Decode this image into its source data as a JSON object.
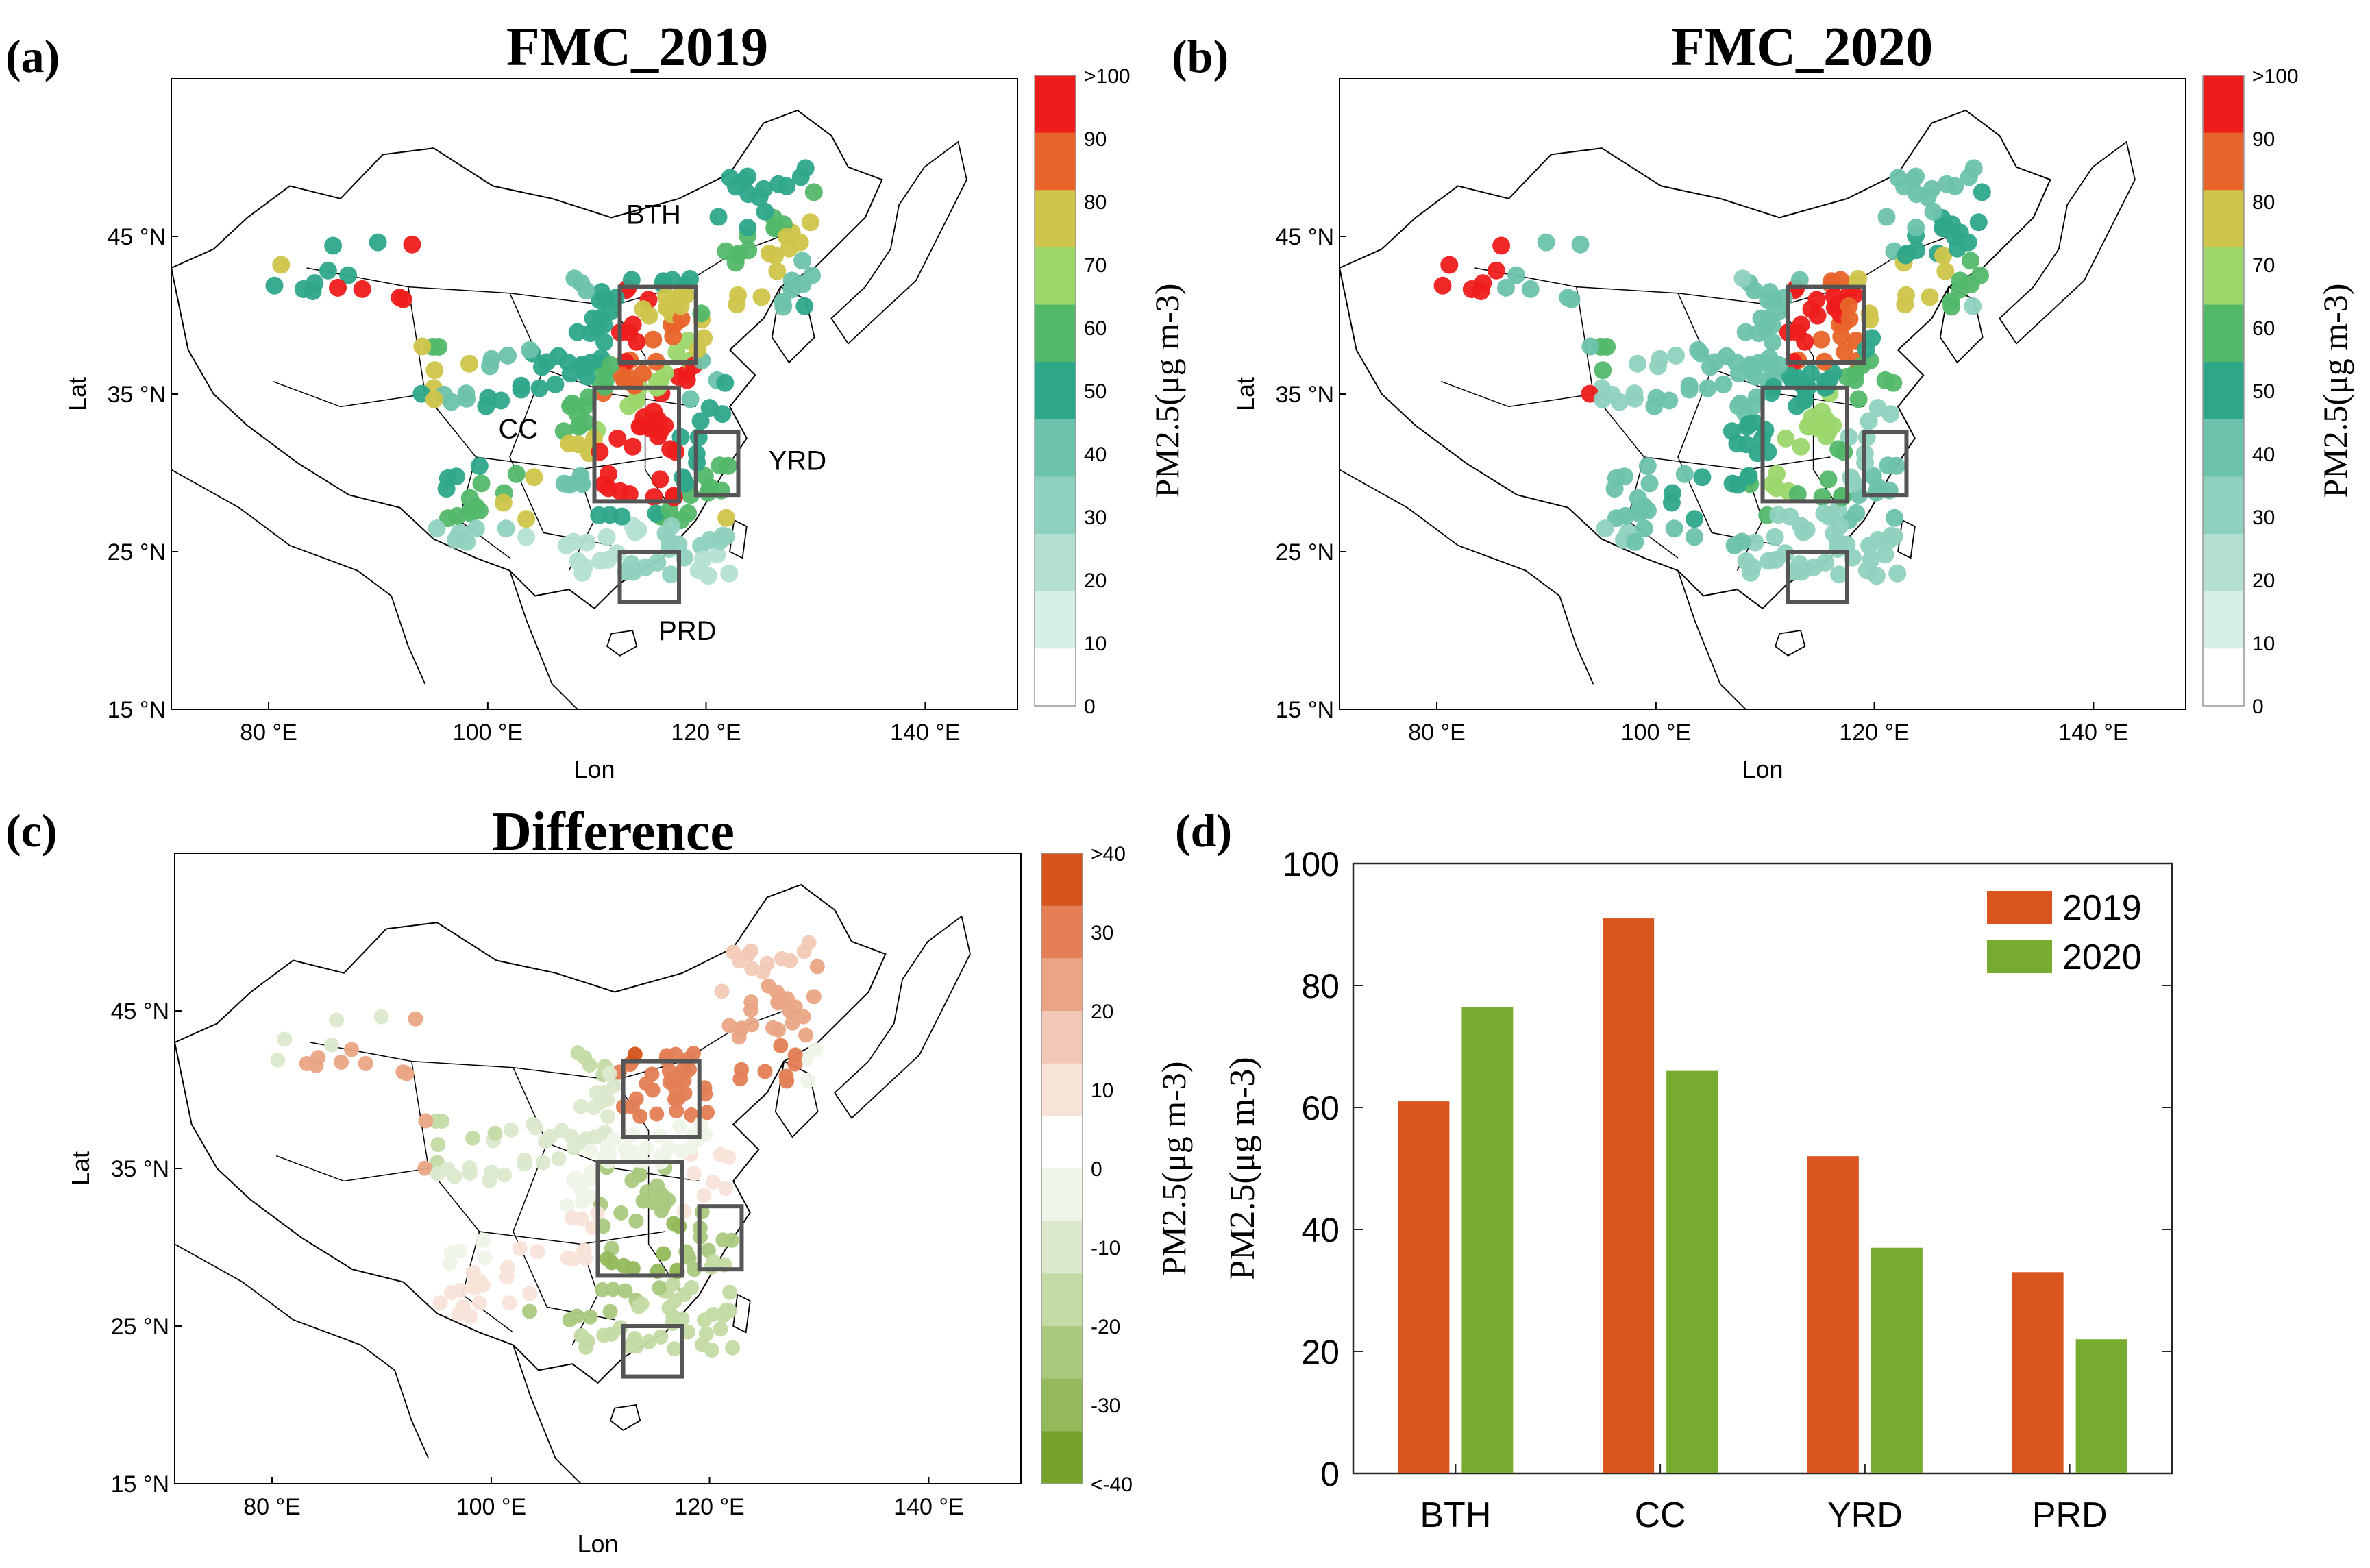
{
  "colors": {
    "pm_ramp": [
      "#ffffff",
      "#d6efe8",
      "#b3e0d3",
      "#8fd1bf",
      "#6cc2ab",
      "#2ea68a",
      "#52b86a",
      "#9bd76b",
      "#cec54a",
      "#e8642a",
      "#ef1c1c"
    ],
    "diff_ramp": [
      "#76a32a",
      "#93b95a",
      "#aac97e",
      "#c3dba4",
      "#dce9cd",
      "#eef4e8",
      "#ffffff",
      "#f8e3d9",
      "#f2c9b6",
      "#eaa584",
      "#e37e55",
      "#d6531c"
    ],
    "bar_2019": "#d9541f",
    "bar_2020": "#77ac30",
    "box_outline": "#555555",
    "map_outline": "#000000"
  },
  "panels": [
    {
      "id": "a",
      "label": "(a)",
      "title": "FMC_2019",
      "xlabel": "Lon",
      "ylabel": "Lat",
      "lon_ticks": [
        "80 °E",
        "100 °E",
        "120 °E",
        "140 °E"
      ],
      "lat_ticks": [
        "15 °N",
        "25 °N",
        "35 °N",
        "45 °N"
      ],
      "colorbar": {
        "ticks": [
          ">100",
          "90",
          "80",
          "70",
          "60",
          "50",
          "40",
          "30",
          "20",
          "10",
          "0"
        ],
        "unit": "PM2.5(μg m-3)"
      },
      "region_labels": [
        "BTH",
        "CC",
        "YRD",
        "PRD"
      ]
    },
    {
      "id": "b",
      "label": "(b)",
      "title": "FMC_2020",
      "xlabel": "Lon",
      "ylabel": "Lat",
      "lon_ticks": [
        "80 °E",
        "100 °E",
        "120 °E",
        "140 °E"
      ],
      "lat_ticks": [
        "15 °N",
        "25 °N",
        "35 °N",
        "45 °N"
      ],
      "colorbar": {
        "ticks": [
          ">100",
          "90",
          "80",
          "70",
          "60",
          "50",
          "40",
          "30",
          "20",
          "10",
          "0"
        ],
        "unit": "PM2.5(μg m-3)"
      }
    },
    {
      "id": "c",
      "label": "(c)",
      "title": "Difference",
      "xlabel": "Lon",
      "ylabel": "Lat",
      "lon_ticks": [
        "80 °E",
        "100 °E",
        "120 °E",
        "140 °E"
      ],
      "lat_ticks": [
        "15 °N",
        "25 °N",
        "35 °N",
        "45 °N"
      ],
      "colorbar": {
        "ticks": [
          ">40",
          "30",
          "20",
          "10",
          "0",
          "-10",
          "-20",
          "-30",
          "<-40"
        ],
        "unit": "PM2.5(μg m-3)"
      }
    }
  ],
  "chart_data": {
    "type": "bar",
    "label": "(d)",
    "categories": [
      "BTH",
      "CC",
      "YRD",
      "PRD"
    ],
    "series": [
      {
        "name": "2019",
        "values": [
          61,
          91,
          52,
          33
        ]
      },
      {
        "name": "2020",
        "values": [
          76.5,
          66,
          37,
          22
        ]
      }
    ],
    "ylabel": "PM2.5(μg m-3)",
    "ylim": [
      0,
      100
    ],
    "yticks": [
      "0",
      "20",
      "40",
      "60",
      "80",
      "100"
    ],
    "legend": "top-right",
    "grid": false
  }
}
